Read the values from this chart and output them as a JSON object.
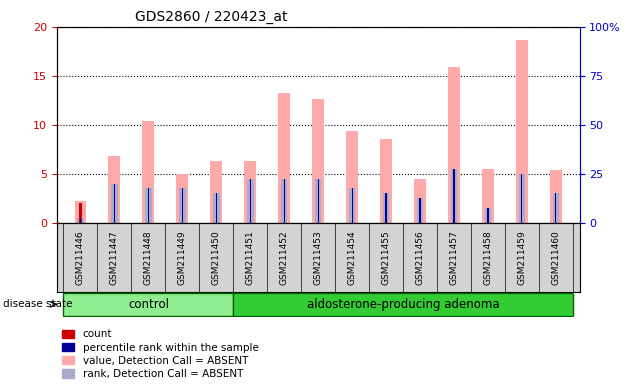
{
  "title": "GDS2860 / 220423_at",
  "samples": [
    "GSM211446",
    "GSM211447",
    "GSM211448",
    "GSM211449",
    "GSM211450",
    "GSM211451",
    "GSM211452",
    "GSM211453",
    "GSM211454",
    "GSM211455",
    "GSM211456",
    "GSM211457",
    "GSM211458",
    "GSM211459",
    "GSM211460"
  ],
  "count": [
    2,
    0,
    0,
    0,
    0,
    0,
    0,
    0,
    0,
    0,
    0,
    0,
    0,
    0,
    0
  ],
  "percentile_rank": [
    0.5,
    4.0,
    3.5,
    3.5,
    3.0,
    4.5,
    4.5,
    4.5,
    3.5,
    3.0,
    2.5,
    5.5,
    1.5,
    5.0,
    3.0
  ],
  "value_absent": [
    2.2,
    6.8,
    10.4,
    5.0,
    6.3,
    6.3,
    13.2,
    12.6,
    9.4,
    8.5,
    4.5,
    15.9,
    5.5,
    18.7,
    5.4
  ],
  "rank_absent": [
    0.8,
    0,
    0,
    0,
    0,
    0,
    0,
    0,
    0,
    0,
    0,
    0,
    0,
    0,
    0
  ],
  "ylim_left": [
    0,
    20
  ],
  "ylim_right": [
    0,
    100
  ],
  "yticks_left": [
    0,
    5,
    10,
    15,
    20
  ],
  "yticks_right": [
    0,
    25,
    50,
    75,
    100
  ],
  "ytick_labels_left": [
    "0",
    "5",
    "10",
    "15",
    "20"
  ],
  "ytick_labels_right": [
    "0",
    "25",
    "50",
    "75",
    "100%"
  ],
  "control_count": 5,
  "control_label": "control",
  "adenoma_label": "aldosterone-producing adenoma",
  "disease_state_label": "disease state",
  "legend": [
    {
      "label": "count",
      "color": "#cc0000"
    },
    {
      "label": "percentile rank within the sample",
      "color": "#000099"
    },
    {
      "label": "value, Detection Call = ABSENT",
      "color": "#ffaaaa"
    },
    {
      "label": "rank, Detection Call = ABSENT",
      "color": "#aaaacc"
    }
  ],
  "bar_width": 0.35,
  "rank_bar_width": 0.12,
  "bg_color": "#d3d3d3",
  "control_bg": "#90ee90",
  "adenoma_bg": "#33cc33",
  "plot_bg": "#ffffff",
  "left_axis_color": "#cc0000",
  "right_axis_color": "#0000cc",
  "grid_color": "#000000"
}
